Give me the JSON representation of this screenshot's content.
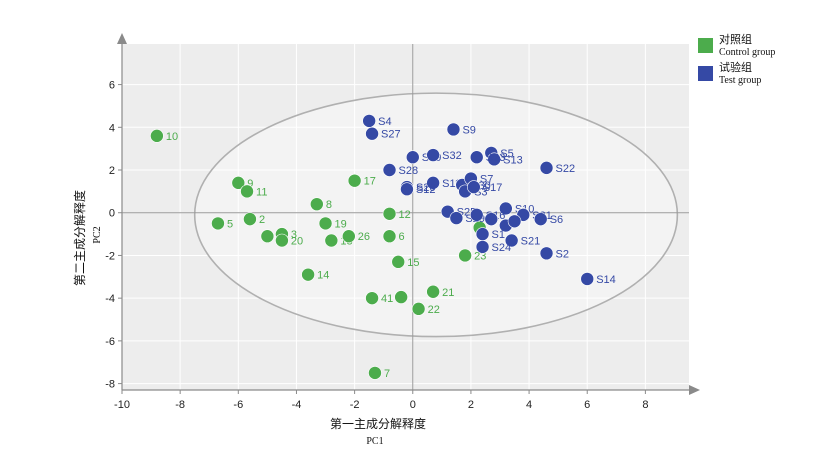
{
  "chart_data": {
    "type": "scatter",
    "xlabel": "第一主成分解释度",
    "xlabel_sub": "PC1",
    "ylabel": "第二主成分解释度",
    "ylabel_sub": "PC2",
    "xlim": [
      -10,
      9.5
    ],
    "ylim": [
      -8.3,
      7.9
    ],
    "xticks": [
      -10,
      -8,
      -6,
      -4,
      -2,
      0,
      2,
      4,
      6,
      8
    ],
    "yticks": [
      -8,
      -6,
      -4,
      -2,
      0,
      2,
      4,
      6
    ],
    "grid": true,
    "legend_position": "top-right",
    "ellipse": {
      "center": [
        0.8,
        -0.1
      ],
      "rx": 8.3,
      "ry": 5.7
    },
    "series": [
      {
        "name": "对照组",
        "name_en": "Control group",
        "color": "#4cac4c",
        "points": [
          {
            "label": "10",
            "x": -8.8,
            "y": 3.6
          },
          {
            "label": "9",
            "x": -6.0,
            "y": 1.4
          },
          {
            "label": "11",
            "x": -5.7,
            "y": 1.0
          },
          {
            "label": "17",
            "x": -2.0,
            "y": 1.5
          },
          {
            "label": "8",
            "x": -3.3,
            "y": 0.4
          },
          {
            "label": "5",
            "x": -6.7,
            "y": -0.5
          },
          {
            "label": "2",
            "x": -5.6,
            "y": -0.3
          },
          {
            "label": "19",
            "x": -3.0,
            "y": -0.5
          },
          {
            "label": "12",
            "x": -0.8,
            "y": -0.05
          },
          {
            "label": "16",
            "x": -5.0,
            "y": -1.1
          },
          {
            "label": "3",
            "x": -4.5,
            "y": -1.0
          },
          {
            "label": "20",
            "x": -4.5,
            "y": -1.3
          },
          {
            "label": "18",
            "x": -2.8,
            "y": -1.3
          },
          {
            "label": "26",
            "x": -2.2,
            "y": -1.1
          },
          {
            "label": "6",
            "x": -0.8,
            "y": -1.1
          },
          {
            "label": "15",
            "x": -0.5,
            "y": -2.3
          },
          {
            "label": "23",
            "x": 1.8,
            "y": -2.0
          },
          {
            "label": "14",
            "x": -3.6,
            "y": -2.9
          },
          {
            "label": "21",
            "x": 0.7,
            "y": -3.7
          },
          {
            "label": "41",
            "x": -1.4,
            "y": -4.0
          },
          {
            "label": "",
            "x": -0.4,
            "y": -3.95
          },
          {
            "label": "22",
            "x": 0.2,
            "y": -4.5
          },
          {
            "label": "7",
            "x": -1.3,
            "y": -7.5
          },
          {
            "label": "",
            "x": 2.3,
            "y": -0.7
          }
        ]
      },
      {
        "name": "试验组",
        "name_en": "Test group",
        "color": "#3549a5",
        "points": [
          {
            "label": "S4",
            "x": -1.5,
            "y": 4.3
          },
          {
            "label": "S27",
            "x": -1.4,
            "y": 3.7
          },
          {
            "label": "S9",
            "x": 1.4,
            "y": 3.9
          },
          {
            "label": "S19",
            "x": 0.0,
            "y": 2.6
          },
          {
            "label": "S32",
            "x": 0.7,
            "y": 2.7
          },
          {
            "label": "S5",
            "x": 2.7,
            "y": 2.8
          },
          {
            "label": "S13",
            "x": 2.8,
            "y": 2.5
          },
          {
            "label": "S23",
            "x": 2.2,
            "y": 2.6
          },
          {
            "label": "S28",
            "x": -0.8,
            "y": 2.0
          },
          {
            "label": "S22",
            "x": 4.6,
            "y": 2.1
          },
          {
            "label": "S11",
            "x": 0.7,
            "y": 1.4
          },
          {
            "label": "S26",
            "x": -0.2,
            "y": 1.2
          },
          {
            "label": "S12",
            "x": -0.2,
            "y": 1.1
          },
          {
            "label": "S30",
            "x": 1.7,
            "y": 1.3
          },
          {
            "label": "S7",
            "x": 2.0,
            "y": 1.6
          },
          {
            "label": "S3",
            "x": 1.8,
            "y": 1.0
          },
          {
            "label": "S17",
            "x": 2.1,
            "y": 1.2
          },
          {
            "label": "S10",
            "x": 3.2,
            "y": 0.2
          },
          {
            "label": "S31",
            "x": 3.8,
            "y": -0.1
          },
          {
            "label": "S6",
            "x": 4.4,
            "y": -0.3
          },
          {
            "label": "S25",
            "x": 1.2,
            "y": 0.05
          },
          {
            "label": "S29",
            "x": 1.5,
            "y": -0.25
          },
          {
            "label": "S16",
            "x": 2.2,
            "y": -0.1
          },
          {
            "label": "",
            "x": 2.7,
            "y": -0.3
          },
          {
            "label": "",
            "x": 3.2,
            "y": -0.6
          },
          {
            "label": "",
            "x": 3.5,
            "y": -0.4
          },
          {
            "label": "S1",
            "x": 2.4,
            "y": -1.0
          },
          {
            "label": "S21",
            "x": 3.4,
            "y": -1.3
          },
          {
            "label": "S24",
            "x": 2.4,
            "y": -1.6
          },
          {
            "label": "S2",
            "x": 4.6,
            "y": -1.9
          },
          {
            "label": "S14",
            "x": 6.0,
            "y": -3.1
          }
        ]
      }
    ]
  }
}
